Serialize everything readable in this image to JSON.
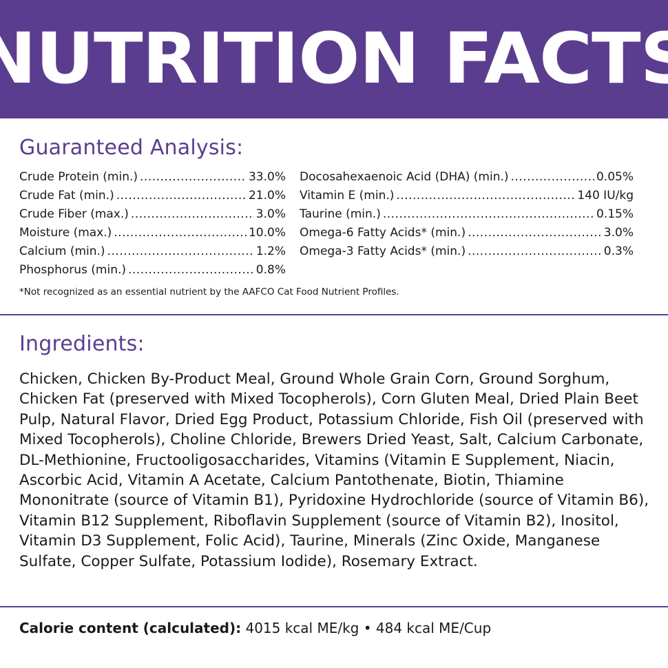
{
  "header": {
    "title": "NUTRITION FACTS",
    "background": "#5b3d8f"
  },
  "guaranteed_analysis": {
    "title": "Guaranteed Analysis:",
    "left": [
      {
        "name": "Crude Protein (min.)",
        "value": "33.0%"
      },
      {
        "name": "Crude Fat (min.)",
        "value": "21.0%"
      },
      {
        "name": "Crude Fiber (max.)",
        "value": "3.0%"
      },
      {
        "name": "Moisture (max.)",
        "value": "10.0%"
      },
      {
        "name": "Calcium (min.)",
        "value": "1.2%"
      },
      {
        "name": "Phosphorus (min.)",
        "value": "0.8%"
      }
    ],
    "right": [
      {
        "name": "Docosahexaenoic Acid (DHA) (min.)",
        "value": "0.05%"
      },
      {
        "name": "Vitamin E (min.)",
        "value": "140 IU/kg"
      },
      {
        "name": "Taurine (min.)",
        "value": "0.15%"
      },
      {
        "name": "Omega-6 Fatty Acids* (min.)",
        "value": "3.0%"
      },
      {
        "name": "Omega-3 Fatty Acids* (min.)",
        "value": "0.3%"
      }
    ],
    "footnote": "*Not recognized as an essential nutrient by the AAFCO Cat Food Nutrient Profiles."
  },
  "ingredients": {
    "title": "Ingredients:",
    "text": "Chicken, Chicken By-Product Meal, Ground Whole Grain Corn, Ground Sorghum, Chicken Fat (preserved with Mixed Tocopherols), Corn Gluten Meal, Dried Plain Beet Pulp, Natural Flavor, Dried Egg Product, Potassium Chloride, Fish Oil (preserved with Mixed Tocopherols), Choline Chloride, Brewers Dried Yeast, Salt, Calcium Carbonate, DL-Methionine, Fructooligosaccharides, Vitamins (Vitamin E Supplement, Niacin, Ascorbic Acid, Vitamin A Acetate, Calcium Pantothenate, Biotin, Thiamine Mononitrate (source of Vitamin B1), Pyridoxine Hydrochloride (source of Vitamin B6), Vitamin B12 Supplement, Riboflavin Supplement (source of Vitamin B2), Inositol, Vitamin D3 Supplement, Folic Acid), Taurine, Minerals (Zinc Oxide, Manganese Sulfate, Copper Sulfate, Potassium Iodide), Rosemary Extract."
  },
  "calorie": {
    "label": "Calorie content (calculated):",
    "value": "4015 kcal ME/kg • 484 kcal ME/Cup"
  }
}
